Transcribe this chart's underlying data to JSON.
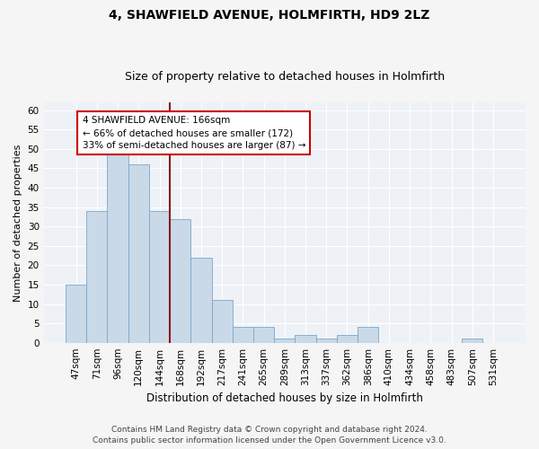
{
  "title1": "4, SHAWFIELD AVENUE, HOLMFIRTH, HD9 2LZ",
  "title2": "Size of property relative to detached houses in Holmfirth",
  "xlabel": "Distribution of detached houses by size in Holmfirth",
  "ylabel": "Number of detached properties",
  "categories": [
    "47sqm",
    "71sqm",
    "96sqm",
    "120sqm",
    "144sqm",
    "168sqm",
    "192sqm",
    "217sqm",
    "241sqm",
    "265sqm",
    "289sqm",
    "313sqm",
    "337sqm",
    "362sqm",
    "386sqm",
    "410sqm",
    "434sqm",
    "458sqm",
    "483sqm",
    "507sqm",
    "531sqm"
  ],
  "values": [
    15,
    34,
    49,
    46,
    34,
    32,
    22,
    11,
    4,
    4,
    1,
    2,
    1,
    2,
    4,
    0,
    0,
    0,
    0,
    1,
    0
  ],
  "bar_color": "#c9d9e8",
  "bar_edge_color": "#7ca8c8",
  "vline_color": "#8b1a1a",
  "annotation_text": "4 SHAWFIELD AVENUE: 166sqm\n← 66% of detached houses are smaller (172)\n33% of semi-detached houses are larger (87) →",
  "annotation_box_color": "#ffffff",
  "annotation_box_edge_color": "#cc0000",
  "ylim": [
    0,
    62
  ],
  "yticks": [
    0,
    5,
    10,
    15,
    20,
    25,
    30,
    35,
    40,
    45,
    50,
    55,
    60
  ],
  "bg_color": "#eef2f7",
  "grid_color": "#ffffff",
  "footer1": "Contains HM Land Registry data © Crown copyright and database right 2024.",
  "footer2": "Contains public sector information licensed under the Open Government Licence v3.0.",
  "title1_fontsize": 10,
  "title2_fontsize": 9,
  "xlabel_fontsize": 8.5,
  "ylabel_fontsize": 8,
  "tick_fontsize": 7.5,
  "annotation_fontsize": 7.5,
  "footer_fontsize": 6.5
}
